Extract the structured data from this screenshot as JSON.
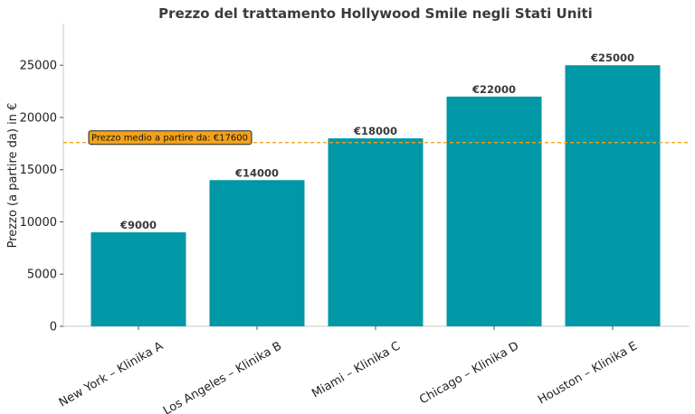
{
  "chart_data": {
    "type": "bar",
    "title": "Prezzo del trattamento Hollywood Smile negli Stati Uniti",
    "xlabel": "",
    "ylabel": "Prezzo (a partire da) in €",
    "categories": [
      "New York – Klinika A",
      "Los Angeles – Klinika B",
      "Miami – Klinika C",
      "Chicago – Klinika D",
      "Houston – Klinika E"
    ],
    "values": [
      9000,
      14000,
      18000,
      22000,
      25000
    ],
    "data_labels": [
      "€9000",
      "€14000",
      "€18000",
      "€22000",
      "€25000"
    ],
    "yticks": [
      0,
      5000,
      10000,
      15000,
      20000,
      25000
    ],
    "ytick_labels": [
      "0",
      "5000",
      "10000",
      "15000",
      "20000",
      "25000"
    ],
    "ylim": [
      0,
      29000
    ],
    "grid": false,
    "bar_color": "#0097a7",
    "reference_line": {
      "value": 17600,
      "label": "Prezzo medio a partire da: €17600",
      "color": "#f2a31b",
      "style": "dashed"
    }
  }
}
